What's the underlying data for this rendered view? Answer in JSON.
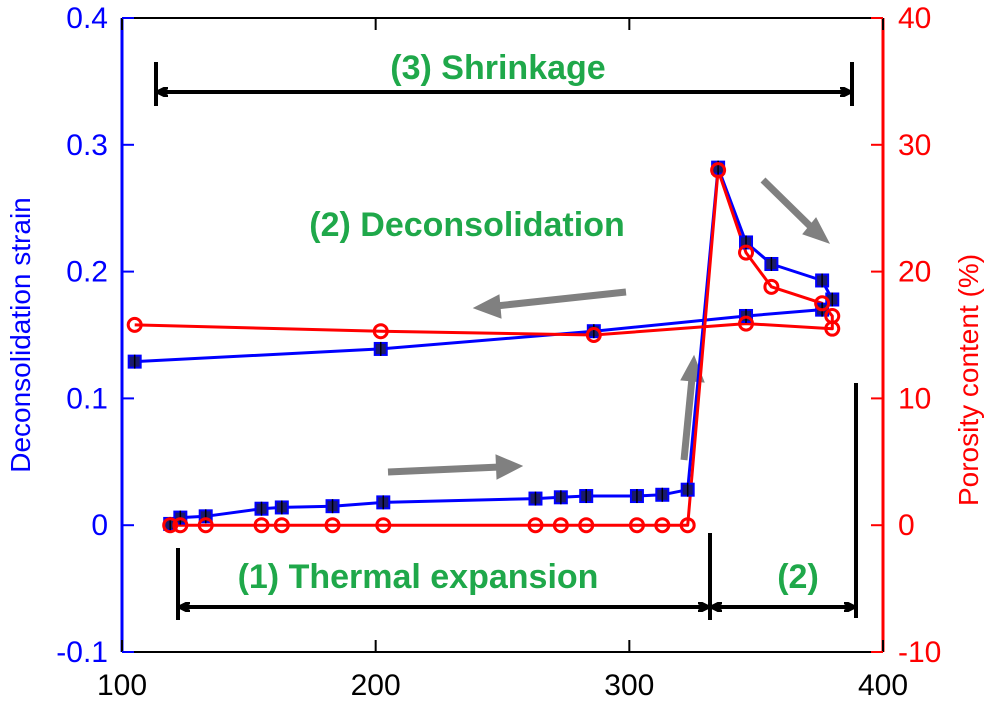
{
  "chart_data": {
    "type": "line",
    "title": "",
    "xlabel": "",
    "ylabel_left": "Deconsolidation strain",
    "ylabel_right": "Porosity content (%)",
    "xlim": [
      100,
      400
    ],
    "ylim_left": [
      -0.1,
      0.4
    ],
    "ylim_right": [
      -10,
      40
    ],
    "x_ticks": [
      "100",
      "200",
      "300",
      "400"
    ],
    "y_left_ticks": [
      "-0.1",
      "0",
      "0.1",
      "0.2",
      "0.3",
      "0.4"
    ],
    "y_right_ticks": [
      "-10",
      "0",
      "10",
      "20",
      "30",
      "40"
    ],
    "grid": false,
    "colors": {
      "left_axis": "#0000ff",
      "right_axis": "#ff0000",
      "annotation": "#1fa84a",
      "arrow_black": "#000000",
      "arrow_gray": "#808080"
    },
    "series": [
      {
        "axis": "left",
        "color": "#0000ff",
        "marker": "square",
        "x": [
          119,
          123,
          133,
          155,
          163,
          183,
          203,
          263,
          273,
          283,
          303,
          313,
          323,
          335,
          346,
          356,
          376,
          380,
          376,
          346,
          286,
          202,
          105
        ],
        "y": [
          0.001,
          0.006,
          0.007,
          0.013,
          0.014,
          0.015,
          0.018,
          0.021,
          0.022,
          0.023,
          0.023,
          0.024,
          0.028,
          0.282,
          0.223,
          0.206,
          0.193,
          0.178,
          0.17,
          0.165,
          0.153,
          0.139,
          0.129
        ]
      },
      {
        "axis": "right",
        "color": "#ff0000",
        "marker": "circle",
        "x": [
          119,
          123,
          133,
          155,
          163,
          183,
          203,
          263,
          273,
          283,
          303,
          313,
          323,
          335,
          346,
          356,
          376,
          380,
          380,
          346,
          286,
          202,
          105
        ],
        "y": [
          0,
          0,
          0,
          0,
          0,
          0,
          0,
          0,
          0,
          0,
          0,
          0,
          0,
          28,
          21.5,
          18.8,
          17.5,
          16.5,
          15.5,
          15.9,
          15.0,
          15.3,
          15.8
        ]
      }
    ],
    "annotations": {
      "shrinkage": "(3) Shrinkage",
      "deconsolidation": "(2) Deconsolidation",
      "thermal_expansion": "(1) Thermal expansion",
      "stage2_short": "(2)"
    }
  }
}
